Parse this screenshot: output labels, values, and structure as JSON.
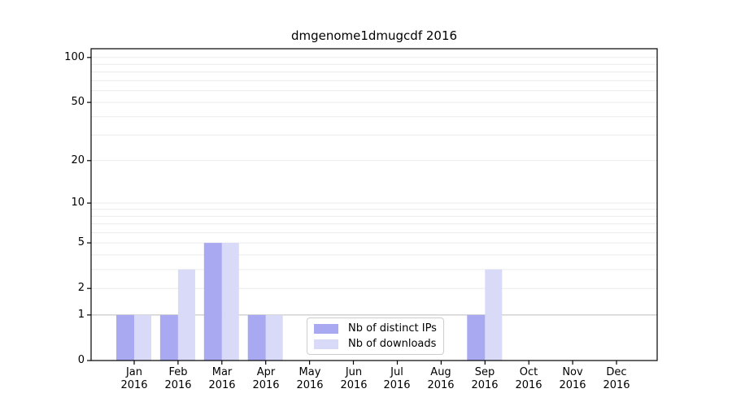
{
  "chart_data": {
    "type": "bar",
    "title": "dmgenome1dmugcdf 2016",
    "categories": [
      "Jan",
      "Feb",
      "Mar",
      "Apr",
      "May",
      "Jun",
      "Jul",
      "Aug",
      "Sep",
      "Oct",
      "Nov",
      "Dec"
    ],
    "category_year": "2016",
    "series": [
      {
        "name": "Nb of distinct IPs",
        "color": "#a9a9f2",
        "values": [
          1,
          1,
          5,
          1,
          0,
          0,
          0,
          0,
          1,
          0,
          0,
          0
        ]
      },
      {
        "name": "Nb of downloads",
        "color": "#d9d9f8",
        "values": [
          1,
          3,
          5,
          1,
          0,
          0,
          0,
          0,
          3,
          0,
          0,
          0
        ]
      }
    ],
    "yscale": "log1p",
    "yticks": [
      0,
      1,
      2,
      5,
      10,
      20,
      50,
      100
    ],
    "ylim": [
      0,
      115
    ],
    "grid": "horizontal-minor",
    "legend_position": "inside lower center",
    "colors": {
      "axis": "#000000",
      "grid_minor": "#ececec",
      "grid_unit_line": "#c9c9c9",
      "legend_border": "#cccccc",
      "background": "#ffffff"
    }
  }
}
